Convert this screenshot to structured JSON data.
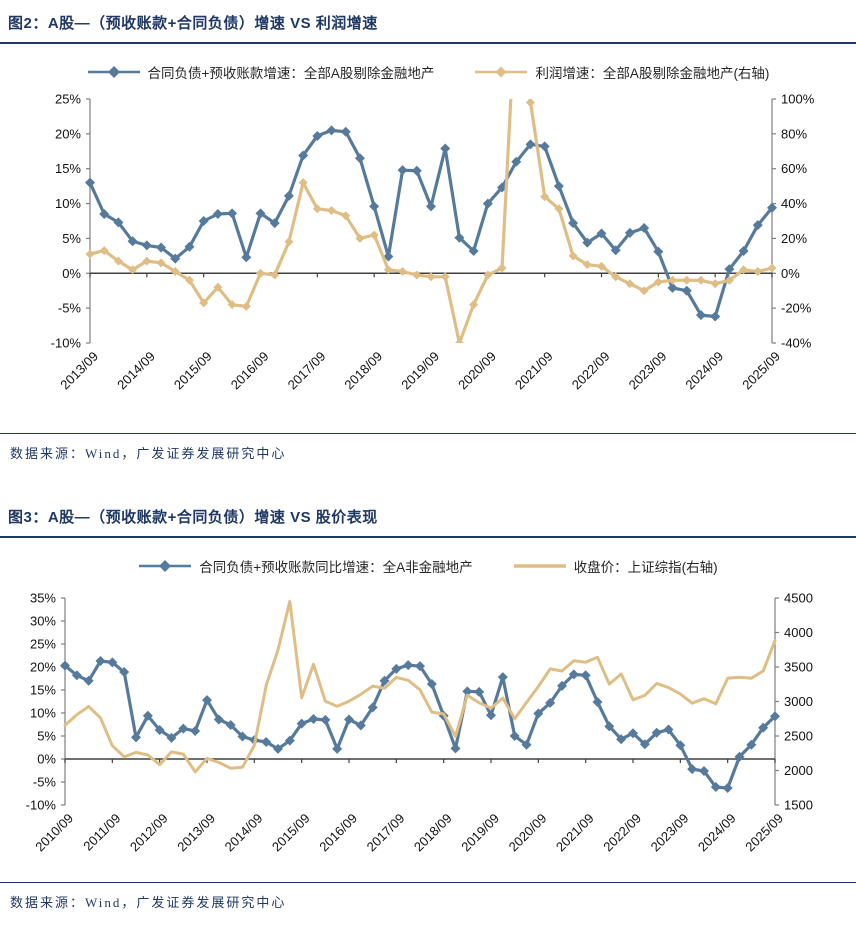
{
  "figure2": {
    "title": "图2：A股—（预收账款+合同负债）增速 VS 利润增速",
    "source": "数据来源：Wind，广发证券发展研究中心",
    "legend": [
      {
        "label": "合同负债+预收账款增速：全部A股剔除金融地产",
        "color": "#567a9c"
      },
      {
        "label": "利润增速：全部A股剔除金融地产(右轴)",
        "color": "#dfbe85"
      }
    ]
  },
  "figure3": {
    "title": "图3：A股—（预收账款+合同负债）增速 VS 股价表现",
    "source": "数据来源：Wind，广发证券发展研究中心",
    "legend": [
      {
        "label": "合同负债+预收账款同比增速：全A非金融地产",
        "color": "#567a9c"
      },
      {
        "label": "收盘价：上证综指(右轴)",
        "color": "#dfbe85"
      }
    ]
  },
  "colors": {
    "navy": "#1f3864",
    "blue_line": "#567a9c",
    "yellow_line": "#dfbe85",
    "axis_gray": "#7f7f7f",
    "zero_line": "#404040",
    "tick_text": "#111111"
  },
  "chart_data": [
    {
      "type": "line",
      "title": "图2：A股—（预收账款+合同负债）增速 VS 利润增速",
      "x": [
        "2013/09",
        "2013/12",
        "2014/03",
        "2014/06",
        "2014/09",
        "2014/12",
        "2015/03",
        "2015/06",
        "2015/09",
        "2015/12",
        "2016/03",
        "2016/06",
        "2016/09",
        "2016/12",
        "2017/03",
        "2017/06",
        "2017/09",
        "2017/12",
        "2018/03",
        "2018/06",
        "2018/09",
        "2018/12",
        "2019/03",
        "2019/06",
        "2019/09",
        "2019/12",
        "2020/03",
        "2020/06",
        "2020/09",
        "2020/12",
        "2021/03",
        "2021/06",
        "2021/09",
        "2021/12",
        "2022/03",
        "2022/06",
        "2022/09",
        "2022/12",
        "2023/03",
        "2023/06",
        "2023/09",
        "2023/12",
        "2024/03",
        "2024/06",
        "2024/09",
        "2024/12",
        "2025/03",
        "2025/06",
        "2025/09"
      ],
      "x_tick_labels": [
        "2013/09",
        "2014/09",
        "2015/09",
        "2016/09",
        "2017/09",
        "2018/09",
        "2019/09",
        "2020/09",
        "2021/09",
        "2022/09",
        "2023/09",
        "2024/09",
        "2025/09"
      ],
      "x_tick_every": 4,
      "left_axis": {
        "min": -10,
        "max": 25,
        "step": 5,
        "suffix": "%"
      },
      "right_axis": {
        "min": -40,
        "max": 100,
        "step": 20,
        "suffix": "%"
      },
      "grid": false,
      "legend_position": "top",
      "series": [
        {
          "name": "合同负债+预收账款增速：全部A股剔除金融地产",
          "axis": "left",
          "color": "#567a9c",
          "marker": "diamond",
          "marker_size": 5,
          "width": 3.2,
          "values": [
            13.0,
            8.5,
            7.3,
            4.6,
            4.0,
            3.7,
            2.1,
            3.8,
            7.5,
            8.5,
            8.6,
            2.3,
            8.6,
            7.2,
            11.1,
            16.9,
            19.7,
            20.5,
            20.3,
            16.5,
            9.6,
            2.4,
            14.8,
            14.7,
            9.6,
            17.9,
            5.1,
            3.2,
            10.0,
            12.3,
            16.0,
            18.5,
            18.2,
            12.5,
            7.2,
            4.4,
            5.7,
            3.3,
            5.8,
            6.5,
            3.1,
            -2.1,
            -2.5,
            -6.0,
            -6.2,
            0.6,
            3.2,
            6.9,
            9.4
          ]
        },
        {
          "name": "利润增速：全部A股剔除金融地产(右轴)",
          "axis": "right",
          "color": "#dfbe85",
          "marker": "diamond",
          "marker_size": 4.5,
          "width": 3.2,
          "values": [
            11,
            13,
            7,
            2,
            7,
            6,
            1,
            -4,
            -17,
            -8,
            -18,
            -19,
            0,
            -1,
            18,
            52,
            37,
            36,
            33,
            20,
            22,
            2,
            1,
            -1,
            -2,
            -2,
            -40,
            -18,
            -1,
            3,
            160,
            98,
            44,
            37,
            10,
            5,
            4,
            -2,
            -6,
            -10,
            -5,
            -4,
            -4,
            -4,
            -6,
            -4,
            2,
            1,
            3
          ]
        }
      ]
    },
    {
      "type": "line",
      "title": "图3：A股—（预收账款+合同负债）增速 VS 股价表现",
      "x": [
        "2010/09",
        "2010/12",
        "2011/03",
        "2011/06",
        "2011/09",
        "2011/12",
        "2012/03",
        "2012/06",
        "2012/09",
        "2012/12",
        "2013/03",
        "2013/06",
        "2013/09",
        "2013/12",
        "2014/03",
        "2014/06",
        "2014/09",
        "2014/12",
        "2015/03",
        "2015/06",
        "2015/09",
        "2015/12",
        "2016/03",
        "2016/06",
        "2016/09",
        "2016/12",
        "2017/03",
        "2017/06",
        "2017/09",
        "2017/12",
        "2018/03",
        "2018/06",
        "2018/09",
        "2018/12",
        "2019/03",
        "2019/06",
        "2019/09",
        "2019/12",
        "2020/03",
        "2020/06",
        "2020/09",
        "2020/12",
        "2021/03",
        "2021/06",
        "2021/09",
        "2021/12",
        "2022/03",
        "2022/06",
        "2022/09",
        "2022/12",
        "2023/03",
        "2023/06",
        "2023/09",
        "2023/12",
        "2024/03",
        "2024/06",
        "2024/09",
        "2024/12",
        "2025/03",
        "2025/06",
        "2025/09"
      ],
      "x_tick_labels": [
        "2010/09",
        "2011/09",
        "2012/09",
        "2013/09",
        "2014/09",
        "2015/09",
        "2016/09",
        "2017/09",
        "2018/09",
        "2019/09",
        "2020/09",
        "2021/09",
        "2022/09",
        "2023/09",
        "2024/09",
        "2025/09"
      ],
      "x_tick_every": 4,
      "left_axis": {
        "min": -10,
        "max": 35,
        "step": 5,
        "suffix": "%"
      },
      "right_axis": {
        "min": 1500,
        "max": 4500,
        "step": 500,
        "suffix": ""
      },
      "grid": false,
      "legend_position": "top",
      "series": [
        {
          "name": "合同负债+预收账款同比增速：全A非金融地产",
          "axis": "left",
          "color": "#567a9c",
          "marker": "diamond",
          "marker_size": 5,
          "width": 3.2,
          "values": [
            20.3,
            18.2,
            17.0,
            21.3,
            21.0,
            18.9,
            4.7,
            9.4,
            6.3,
            4.6,
            6.6,
            6.1,
            12.8,
            8.6,
            7.4,
            4.9,
            4.1,
            3.7,
            2.2,
            4.0,
            7.7,
            8.7,
            8.5,
            2.2,
            8.6,
            7.3,
            11.2,
            17.0,
            19.6,
            20.4,
            20.2,
            16.3,
            9.4,
            2.3,
            14.7,
            14.6,
            9.5,
            17.8,
            5.0,
            3.1,
            9.9,
            12.2,
            15.9,
            18.4,
            18.2,
            12.4,
            7.1,
            4.3,
            5.6,
            3.2,
            5.7,
            6.4,
            3.0,
            -2.2,
            -2.6,
            -6.1,
            -6.3,
            0.5,
            3.1,
            6.8,
            9.3
          ]
        },
        {
          "name": "收盘价：上证综指(右轴)",
          "axis": "right",
          "color": "#dfbe85",
          "marker": null,
          "width": 3,
          "values": [
            2656,
            2808,
            2928,
            2762,
            2359,
            2199,
            2263,
            2225,
            2086,
            2269,
            2237,
            1979,
            2175,
            2116,
            2033,
            2048,
            2364,
            3235,
            3748,
            4450,
            3053,
            3539,
            3004,
            2930,
            3005,
            3104,
            3223,
            3192,
            3349,
            3307,
            3169,
            2847,
            2821,
            2494,
            3091,
            2979,
            2905,
            3050,
            2750,
            2985,
            3218,
            3473,
            3442,
            3591,
            3568,
            3640,
            3252,
            3399,
            3024,
            3089,
            3261,
            3202,
            3110,
            2975,
            3041,
            2967,
            3336,
            3352,
            3336,
            3444,
            3883
          ]
        }
      ]
    }
  ]
}
